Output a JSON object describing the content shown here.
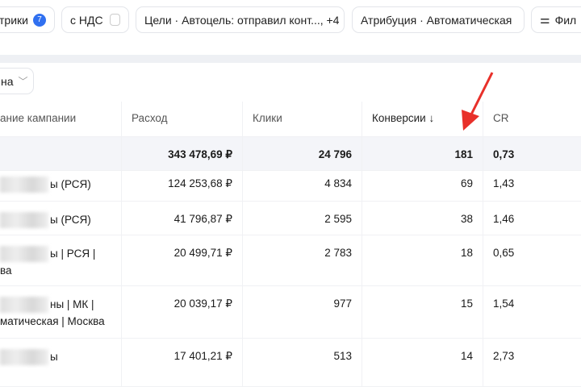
{
  "filters": [
    {
      "label": "трики",
      "badge": "7"
    },
    {
      "label": "с НДС"
    },
    {
      "label": "Цели · Автоцель: отправил конт..., +4"
    },
    {
      "label": "Атрибуция · Автоматическая"
    },
    {
      "label": "Фил",
      "icon": "sliders-icon"
    }
  ],
  "grouping": {
    "label": "на"
  },
  "table": {
    "headers": [
      "ание кампании",
      "Расход",
      "Клики",
      "Конверсии ↓",
      "CR"
    ],
    "total": {
      "spend": "343 478,69 ₽",
      "clicks": "24 796",
      "conversions": "181",
      "cr": "0,73"
    },
    "rows": [
      {
        "name1": "ы (РСЯ)",
        "name2": "",
        "spend": "124 253,68 ₽",
        "clicks": "4 834",
        "conversions": "69",
        "cr": "1,43"
      },
      {
        "name1": "ы (РСЯ)",
        "name2": "",
        "spend": "41 796,87 ₽",
        "clicks": "2 595",
        "conversions": "38",
        "cr": "1,46"
      },
      {
        "name1": "ы | РСЯ |",
        "name2": "ва",
        "spend": "20 499,71 ₽",
        "clicks": "2 783",
        "conversions": "18",
        "cr": "0,65"
      },
      {
        "name1": "ны | МК |",
        "name2": "матическая | Москва",
        "spend": "20 039,17 ₽",
        "clicks": "977",
        "conversions": "15",
        "cr": "1,54"
      },
      {
        "name1": "ы",
        "name2": "",
        "spend": "17 401,21 ₽",
        "clicks": "513",
        "conversions": "14",
        "cr": "2,73"
      }
    ]
  },
  "colors": {
    "accent": "#3070f0",
    "annotation_arrow": "#e8302a"
  }
}
